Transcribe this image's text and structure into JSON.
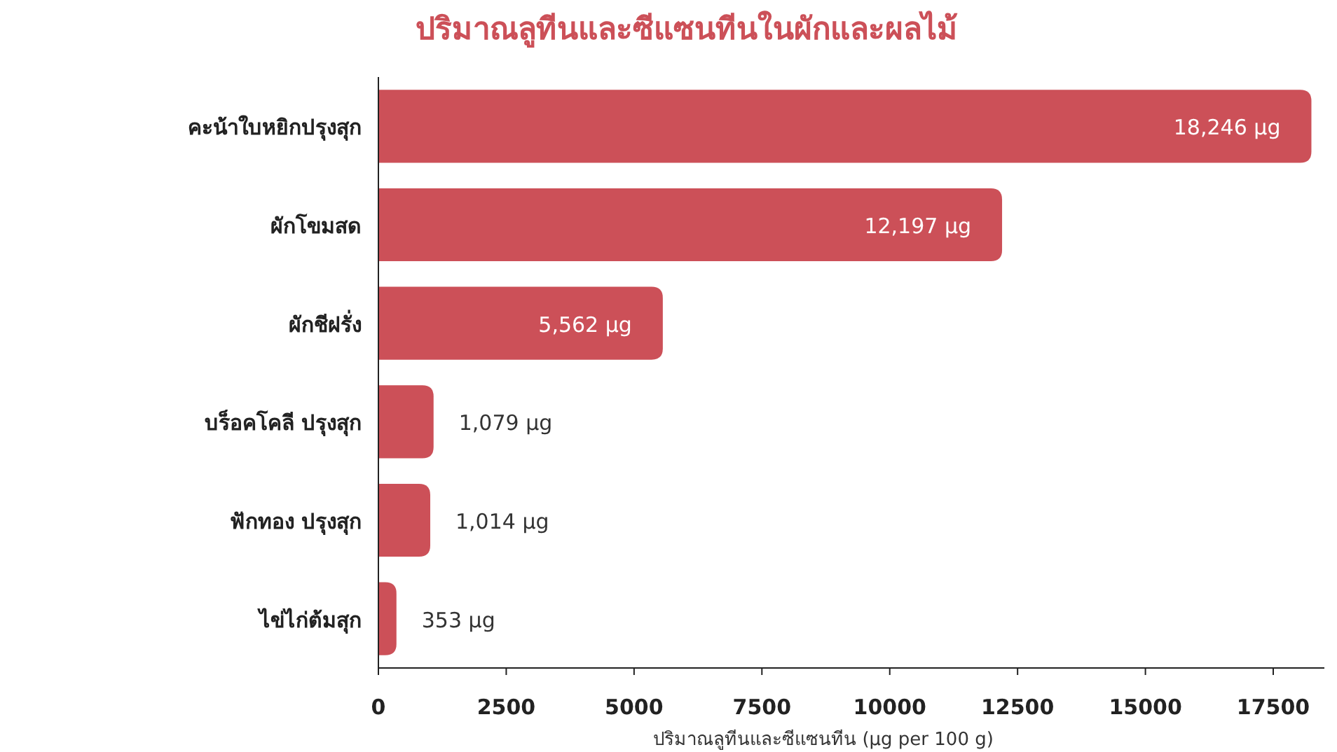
{
  "chart_data": {
    "type": "bar",
    "orientation": "horizontal",
    "title": "ปริมาณลูทีนและซีแซนทีนในผักและผลไม้",
    "xlabel": "ปริมาณลูทีนและซีแซนทีน (µg per 100 g)",
    "categories": [
      "คะน้าใบหยิกปรุงสุก",
      "ผักโขมสด",
      "ผักชีฝรั่ง",
      "บร็อคโคลี ปรุงสุก",
      "ฟักทอง ปรุงสุก",
      "ไข่ไก่ต้มสุก"
    ],
    "values": [
      18246,
      12197,
      5562,
      1079,
      1014,
      353
    ],
    "value_labels": [
      "18,246 µg",
      "12,197 µg",
      "5,562 µg",
      "1,079 µg",
      "1,014 µg",
      "353 µg"
    ],
    "color": "#cc5058",
    "xlim": [
      0,
      18500
    ],
    "xticks": [
      0,
      2500,
      5000,
      7500,
      10000,
      12500,
      15000,
      17500
    ],
    "grid": false
  }
}
